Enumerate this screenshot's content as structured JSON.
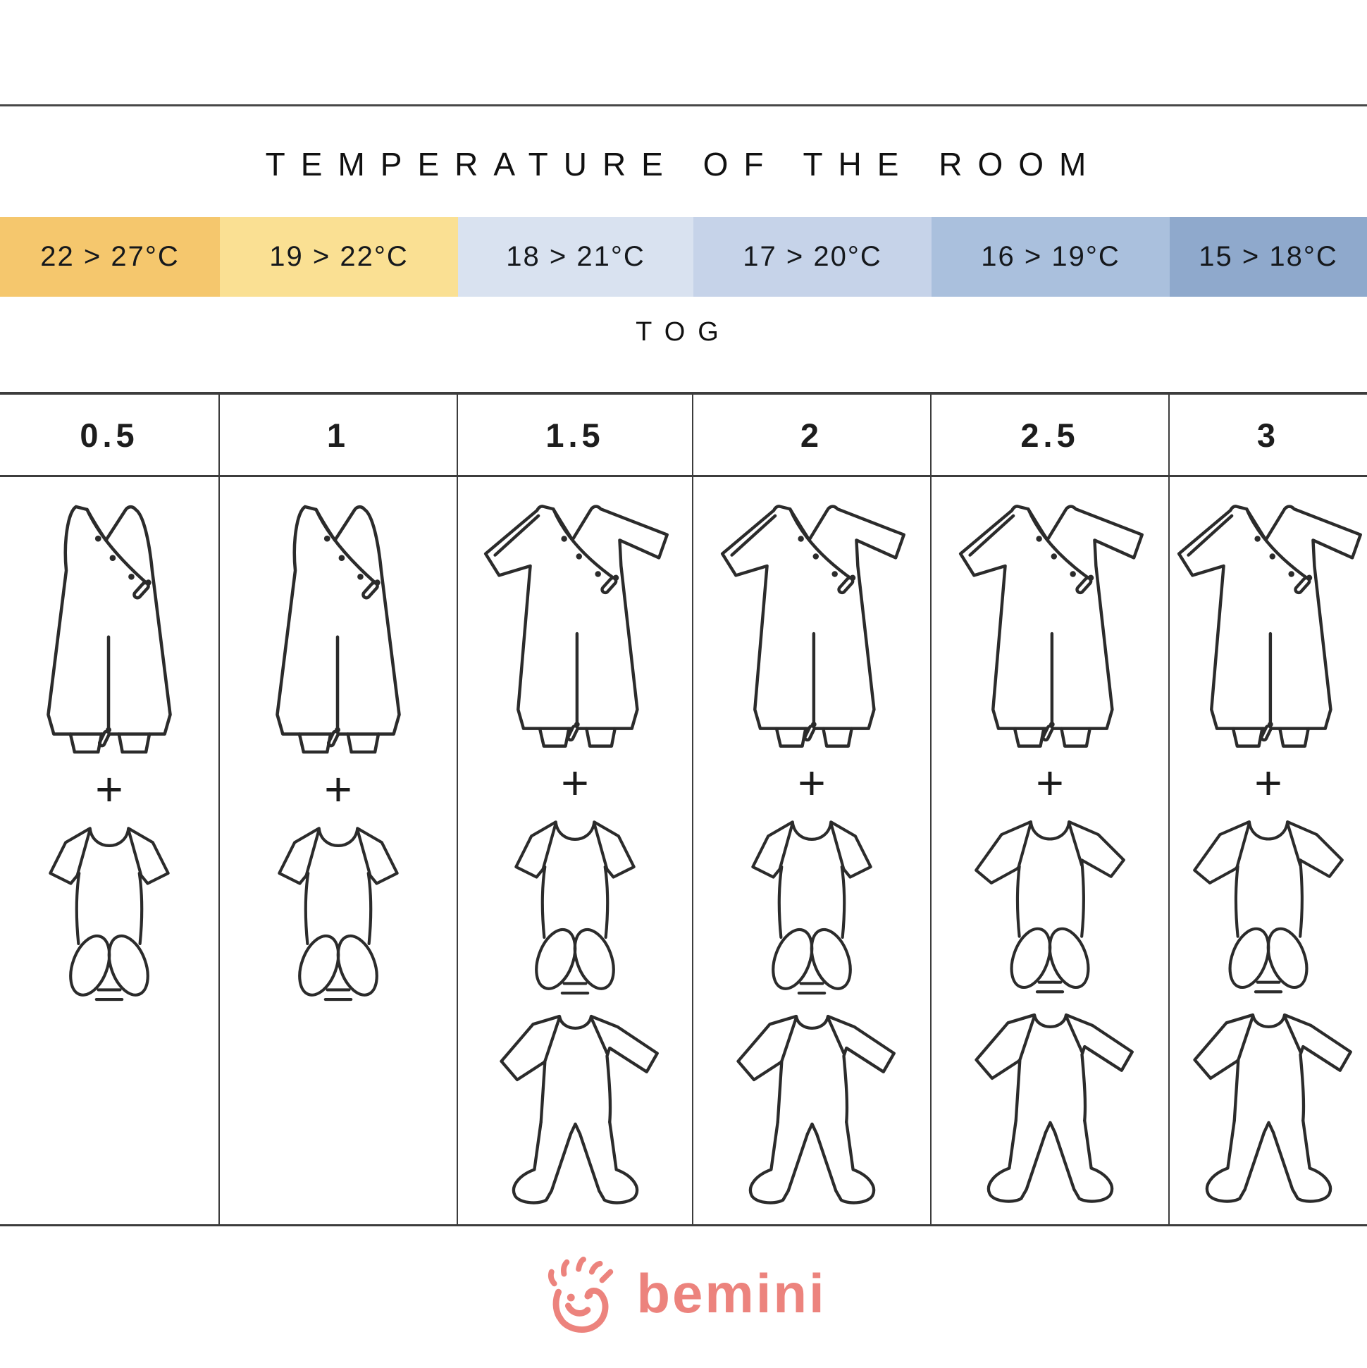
{
  "header": {
    "title": "TEMPERATURE OF THE ROOM",
    "tog_label": "TOG"
  },
  "temperature_bands": [
    {
      "label": "22 > 27°C",
      "color": "#f5c76d"
    },
    {
      "label": "19 > 22°C",
      "color": "#fae093"
    },
    {
      "label": "18 > 21°C",
      "color": "#d9e2f0"
    },
    {
      "label": "17 > 20°C",
      "color": "#c6d3e9"
    },
    {
      "label": "16 > 19°C",
      "color": "#aac0dd"
    },
    {
      "label": "15 > 18°C",
      "color": "#8fa9cc"
    }
  ],
  "plus_sign": "+",
  "columns": [
    {
      "tog": "0.5",
      "items": [
        "sleeping-bag-sleeveless",
        "plus",
        "bodysuit-short-sleeve"
      ]
    },
    {
      "tog": "1",
      "items": [
        "sleeping-bag-sleeveless",
        "plus",
        "bodysuit-short-sleeve"
      ]
    },
    {
      "tog": "1.5",
      "items": [
        "sleeping-bag-long-sleeve",
        "plus",
        "bodysuit-short-sleeve",
        "pajamas-footed"
      ]
    },
    {
      "tog": "2",
      "items": [
        "sleeping-bag-long-sleeve",
        "plus",
        "bodysuit-short-sleeve",
        "pajamas-footed"
      ]
    },
    {
      "tog": "2.5",
      "items": [
        "sleeping-bag-long-sleeve",
        "plus",
        "bodysuit-long-sleeve",
        "pajamas-footed"
      ]
    },
    {
      "tog": "3",
      "items": [
        "sleeping-bag-long-sleeve",
        "plus",
        "bodysuit-long-sleeve",
        "pajamas-footed"
      ]
    }
  ],
  "logo": {
    "text": "bemini",
    "color": "#ec837d"
  }
}
